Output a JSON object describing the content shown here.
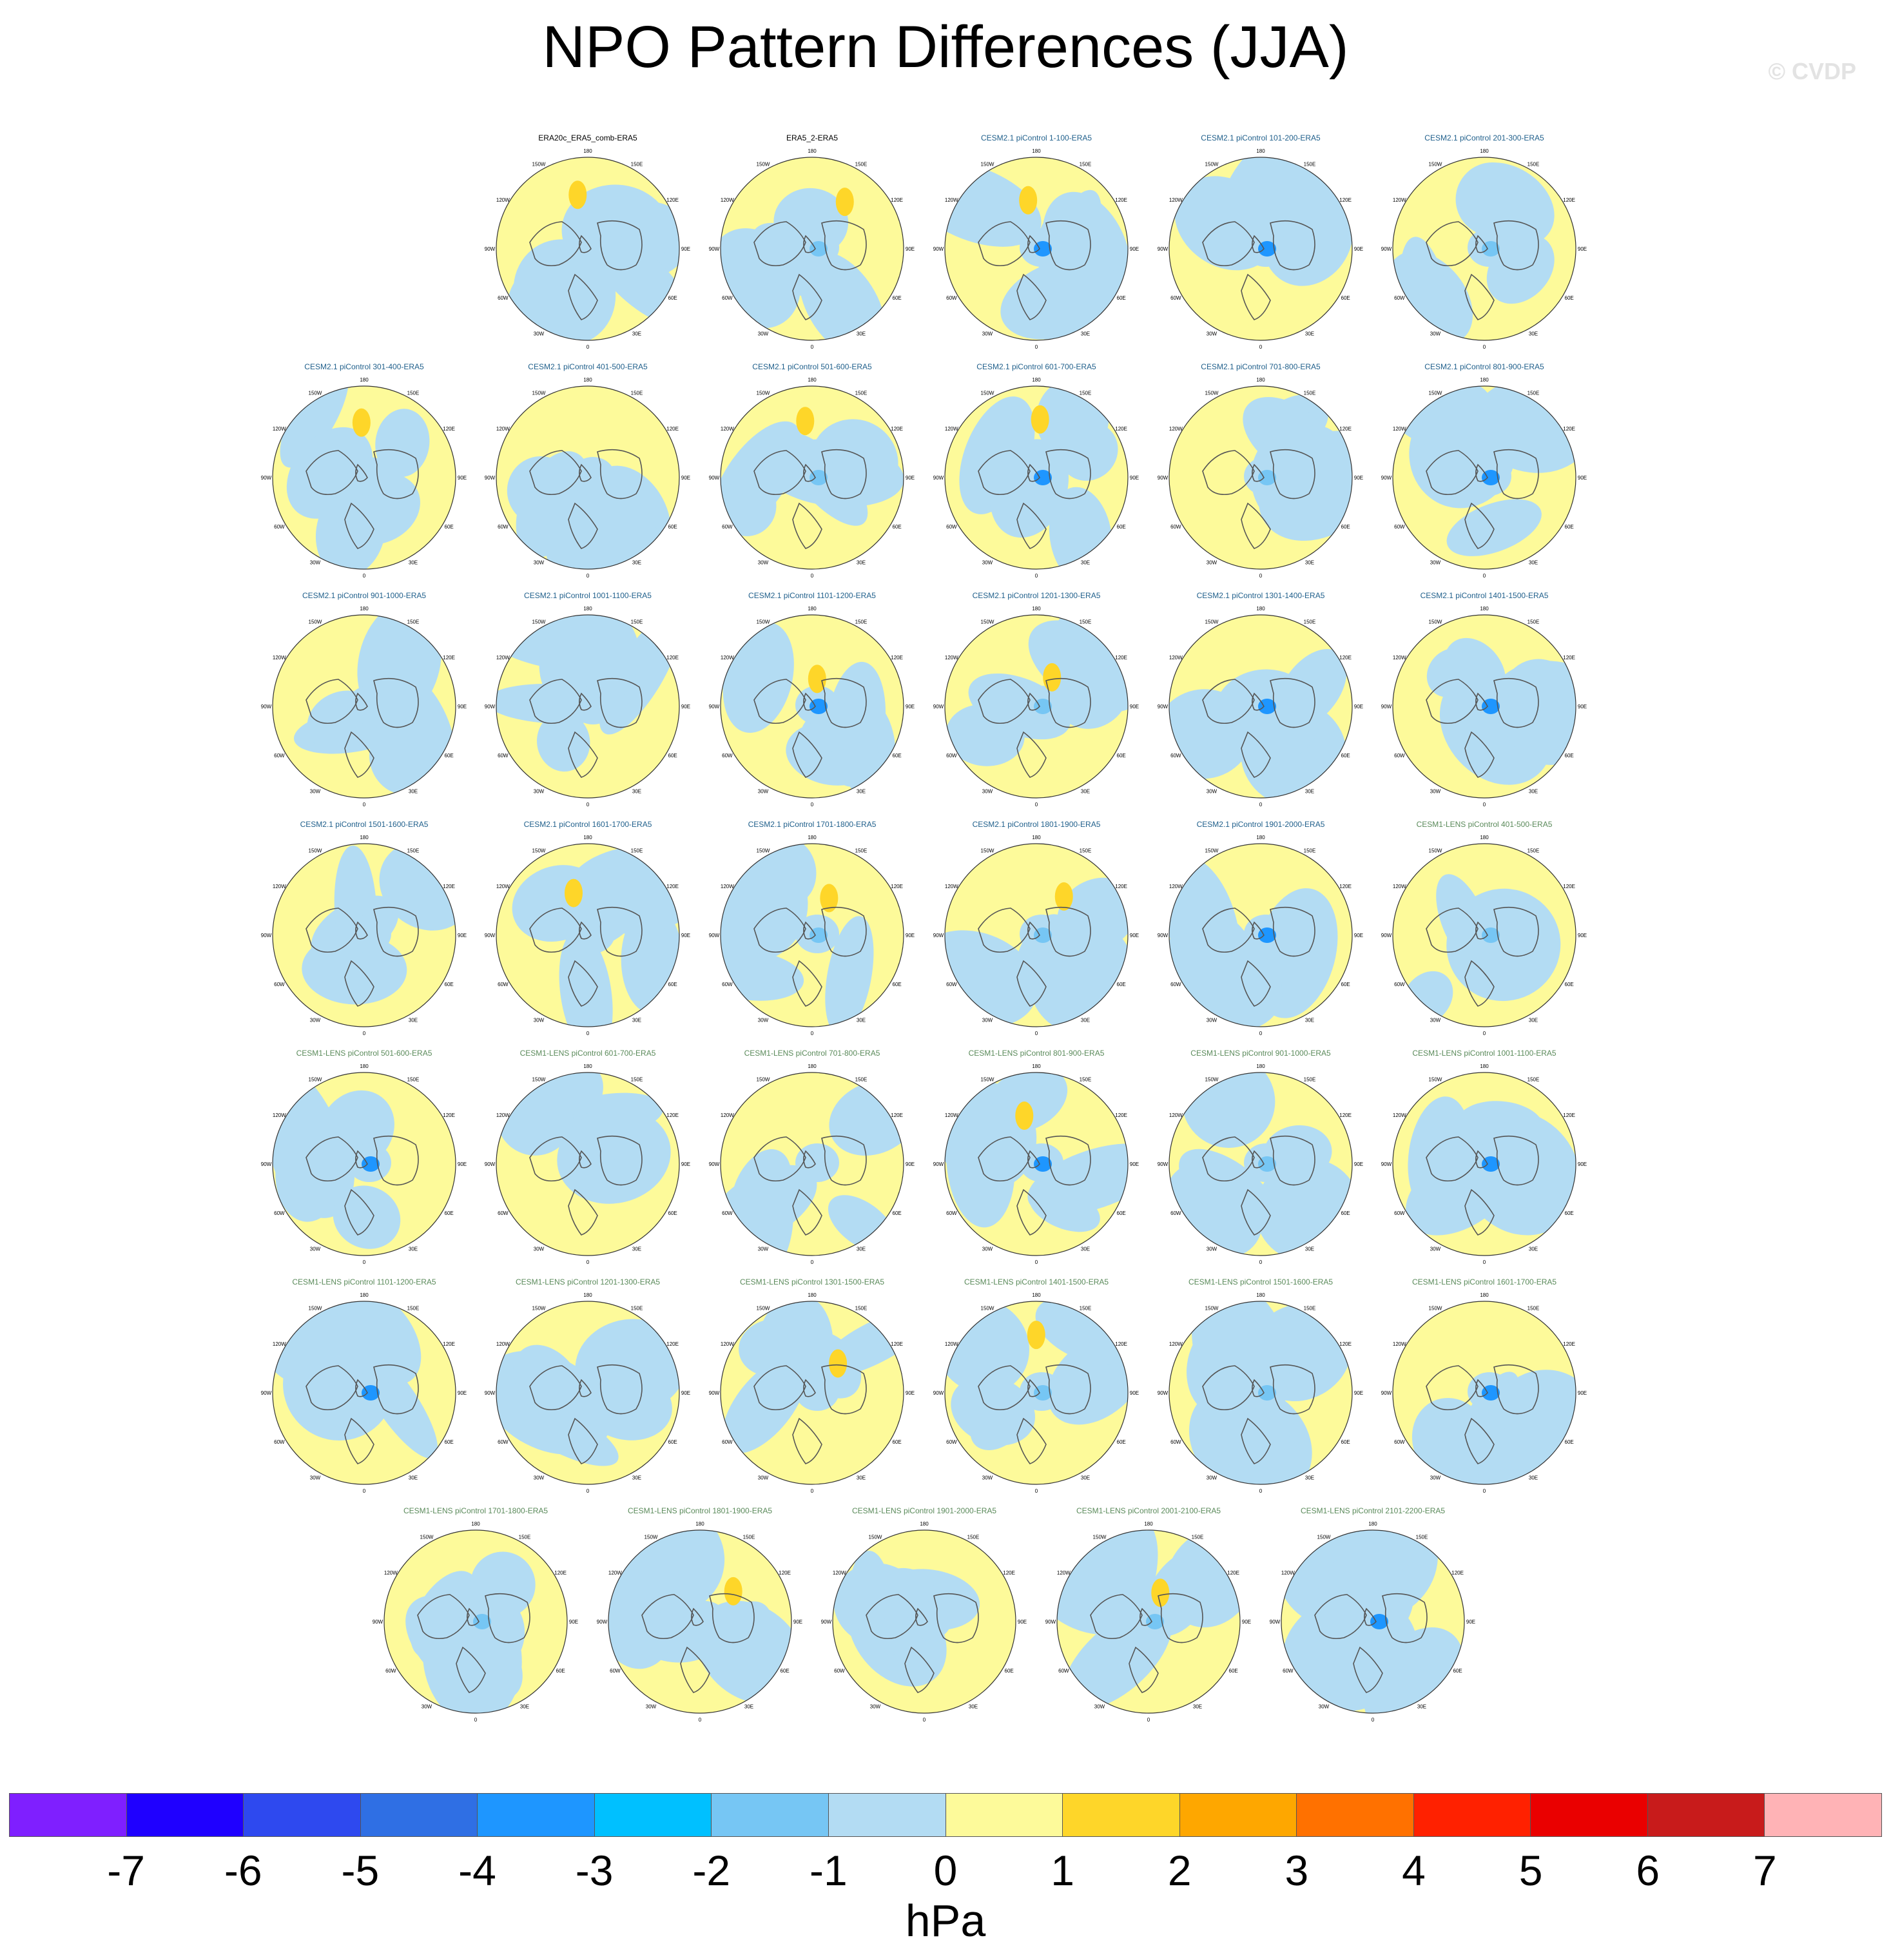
{
  "title": "NPO Pattern Differences (JJA)",
  "watermark": "© CVDP",
  "colors": {
    "cesm2_title": "#1f5f8b",
    "cesm1_title": "#5a8a5a",
    "obs_title": "#000000",
    "land_outline": "#555555",
    "globe_outline": "#333333"
  },
  "axis_labels": [
    "180",
    "150E",
    "120E",
    "90E",
    "60E",
    "30E",
    "0",
    "30W",
    "60W",
    "90W",
    "120W",
    "150W"
  ],
  "panels": [
    {
      "title": "ERA20c_ERA5_comb-ERA5",
      "group": "obs"
    },
    {
      "title": "ERA5_2-ERA5",
      "group": "obs"
    },
    {
      "title": "CESM2.1 piControl 1-100-ERA5",
      "group": "cesm2"
    },
    {
      "title": "CESM2.1 piControl 101-200-ERA5",
      "group": "cesm2"
    },
    {
      "title": "CESM2.1 piControl 201-300-ERA5",
      "group": "cesm2"
    },
    {
      "title": "CESM2.1 piControl 301-400-ERA5",
      "group": "cesm2"
    },
    {
      "title": "CESM2.1 piControl 401-500-ERA5",
      "group": "cesm2"
    },
    {
      "title": "CESM2.1 piControl 501-600-ERA5",
      "group": "cesm2"
    },
    {
      "title": "CESM2.1 piControl 601-700-ERA5",
      "group": "cesm2"
    },
    {
      "title": "CESM2.1 piControl 701-800-ERA5",
      "group": "cesm2"
    },
    {
      "title": "CESM2.1 piControl 801-900-ERA5",
      "group": "cesm2"
    },
    {
      "title": "CESM2.1 piControl 901-1000-ERA5",
      "group": "cesm2"
    },
    {
      "title": "CESM2.1 piControl 1001-1100-ERA5",
      "group": "cesm2"
    },
    {
      "title": "CESM2.1 piControl 1101-1200-ERA5",
      "group": "cesm2"
    },
    {
      "title": "CESM2.1 piControl 1201-1300-ERA5",
      "group": "cesm2"
    },
    {
      "title": "CESM2.1 piControl 1301-1400-ERA5",
      "group": "cesm2"
    },
    {
      "title": "CESM2.1 piControl 1401-1500-ERA5",
      "group": "cesm2"
    },
    {
      "title": "CESM2.1 piControl 1501-1600-ERA5",
      "group": "cesm2"
    },
    {
      "title": "CESM2.1 piControl 1601-1700-ERA5",
      "group": "cesm2"
    },
    {
      "title": "CESM2.1 piControl 1701-1800-ERA5",
      "group": "cesm2"
    },
    {
      "title": "CESM2.1 piControl 1801-1900-ERA5",
      "group": "cesm2"
    },
    {
      "title": "CESM2.1 piControl 1901-2000-ERA5",
      "group": "cesm2"
    },
    {
      "title": "CESM1-LENS piControl 401-500-ERA5",
      "group": "cesm1"
    },
    {
      "title": "CESM1-LENS piControl 501-600-ERA5",
      "group": "cesm1"
    },
    {
      "title": "CESM1-LENS piControl 601-700-ERA5",
      "group": "cesm1"
    },
    {
      "title": "CESM1-LENS piControl 701-800-ERA5",
      "group": "cesm1"
    },
    {
      "title": "CESM1-LENS piControl 801-900-ERA5",
      "group": "cesm1"
    },
    {
      "title": "CESM1-LENS piControl 901-1000-ERA5",
      "group": "cesm1"
    },
    {
      "title": "CESM1-LENS piControl 1001-1100-ERA5",
      "group": "cesm1"
    },
    {
      "title": "CESM1-LENS piControl 1101-1200-ERA5",
      "group": "cesm1"
    },
    {
      "title": "CESM1-LENS piControl 1201-1300-ERA5",
      "group": "cesm1"
    },
    {
      "title": "CESM1-LENS piControl 1301-1500-ERA5",
      "group": "cesm1"
    },
    {
      "title": "CESM1-LENS piControl 1401-1500-ERA5",
      "group": "cesm1"
    },
    {
      "title": "CESM1-LENS piControl 1501-1600-ERA5",
      "group": "cesm1"
    },
    {
      "title": "CESM1-LENS piControl 1601-1700-ERA5",
      "group": "cesm1"
    },
    {
      "title": "CESM1-LENS piControl 1701-1800-ERA5",
      "group": "cesm1"
    },
    {
      "title": "CESM1-LENS piControl 1801-1900-ERA5",
      "group": "cesm1"
    },
    {
      "title": "CESM1-LENS piControl 1901-2000-ERA5",
      "group": "cesm1"
    },
    {
      "title": "CESM1-LENS piControl 2001-2100-ERA5",
      "group": "cesm1"
    },
    {
      "title": "CESM1-LENS piControl 2101-2200-ERA5",
      "group": "cesm1"
    }
  ],
  "colorbar": {
    "colors": [
      "#7f1fff",
      "#1f00ff",
      "#2e49ef",
      "#2f6fe4",
      "#1e96ff",
      "#00c0ff",
      "#76c6f4",
      "#b3dcf3",
      "#fdfa9a",
      "#fed629",
      "#fea700",
      "#ff7100",
      "#ff2100",
      "#ea0000",
      "#c81b1b",
      "#ffb3b6"
    ],
    "labels": [
      "-7",
      "-6",
      "-5",
      "-4",
      "-3",
      "-2",
      "-1",
      "0",
      "1",
      "2",
      "3",
      "4",
      "5",
      "6",
      "7"
    ],
    "unit": "hPa"
  }
}
